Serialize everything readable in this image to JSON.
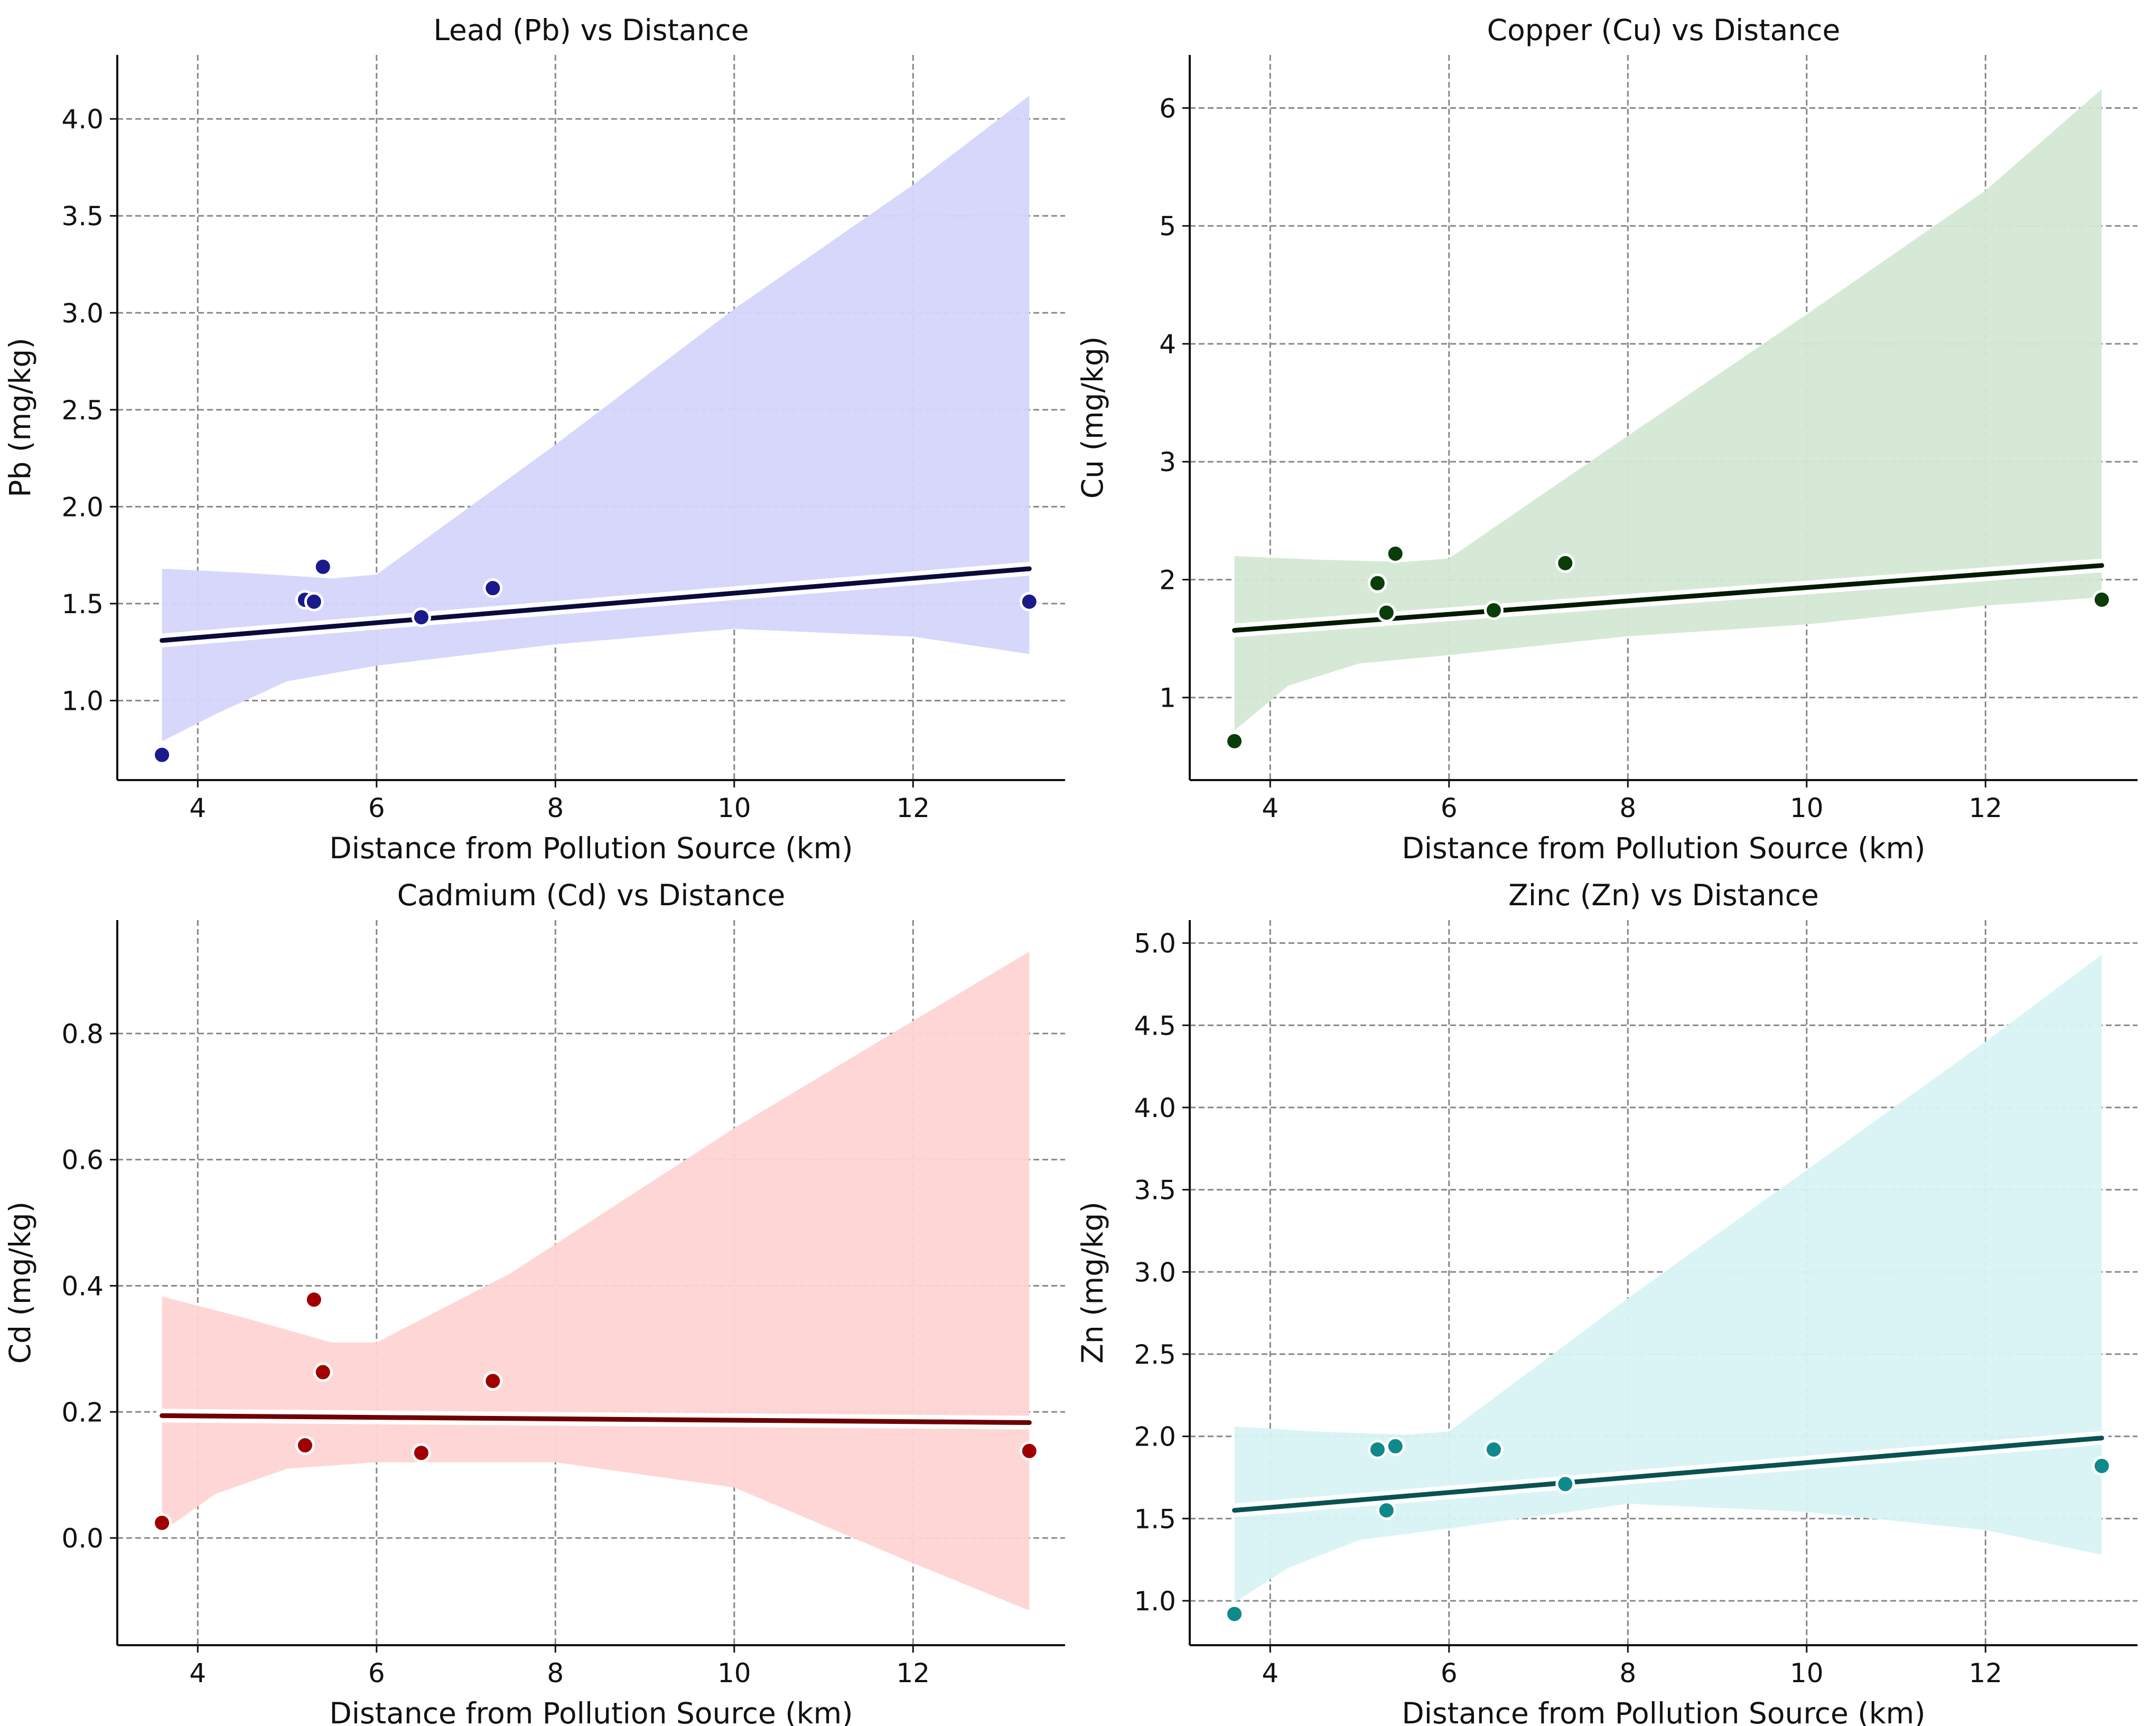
{
  "chart_data": [
    {
      "type": "scatter",
      "title": "Lead (Pb) vs Distance",
      "xlabel": "Distance from Pollution Source (km)",
      "ylabel": "Pb (mg/kg)",
      "xlim": [
        3.1,
        13.7
      ],
      "ylim": [
        0.59,
        4.33
      ],
      "xticks": [
        4,
        6,
        8,
        10,
        12
      ],
      "xtick_labels": [
        "4",
        "6",
        "8",
        "10",
        "12"
      ],
      "yticks": [
        1.0,
        1.5,
        2.0,
        2.5,
        3.0,
        3.5,
        4.0
      ],
      "ytick_labels": [
        "1.0",
        "1.5",
        "2.0",
        "2.5",
        "3.0",
        "3.5",
        "4.0"
      ],
      "grid": true,
      "x": [
        3.6,
        5.2,
        5.3,
        5.4,
        6.5,
        7.3,
        13.3
      ],
      "y": [
        0.72,
        1.52,
        1.51,
        1.69,
        1.43,
        1.58,
        1.51
      ],
      "fit": {
        "x": [
          3.6,
          13.3
        ],
        "y": [
          1.31,
          1.68
        ]
      },
      "ci_upper": {
        "x": [
          3.6,
          4.5,
          5.5,
          6.0,
          8.0,
          10.0,
          12.0,
          13.3
        ],
        "y": [
          1.68,
          1.66,
          1.63,
          1.65,
          2.32,
          3.02,
          3.66,
          4.12
        ]
      },
      "ci_lower": {
        "x": [
          13.3,
          12.0,
          10.0,
          8.0,
          6.0,
          5.0,
          4.2,
          3.6
        ],
        "y": [
          1.24,
          1.33,
          1.37,
          1.29,
          1.18,
          1.1,
          0.93,
          0.79
        ]
      },
      "colors": {
        "points": "#1a1a8c",
        "line": "#0a0a3c",
        "band": "#d5d5fc"
      }
    },
    {
      "type": "scatter",
      "title": "Copper (Cu) vs Distance",
      "xlabel": "Distance from Pollution Source (km)",
      "ylabel": "Cu (mg/kg)",
      "xlim": [
        3.1,
        13.7
      ],
      "ylim": [
        0.3,
        6.45
      ],
      "xticks": [
        4,
        6,
        8,
        10,
        12
      ],
      "xtick_labels": [
        "4",
        "6",
        "8",
        "10",
        "12"
      ],
      "yticks": [
        1,
        2,
        3,
        4,
        5,
        6
      ],
      "ytick_labels": [
        "1",
        "2",
        "3",
        "4",
        "5",
        "6"
      ],
      "grid": true,
      "x": [
        3.6,
        5.2,
        5.3,
        5.4,
        6.5,
        7.3,
        13.3
      ],
      "y": [
        0.63,
        1.97,
        1.72,
        2.22,
        1.74,
        2.14,
        1.83
      ],
      "fit": {
        "x": [
          3.6,
          13.3
        ],
        "y": [
          1.57,
          2.12
        ]
      },
      "ci_upper": {
        "x": [
          3.6,
          4.5,
          5.5,
          6.0,
          8.0,
          10.0,
          12.0,
          13.3
        ],
        "y": [
          2.2,
          2.17,
          2.15,
          2.18,
          3.22,
          4.25,
          5.3,
          6.16
        ]
      },
      "ci_lower": {
        "x": [
          13.3,
          12.0,
          10.0,
          8.0,
          6.0,
          5.0,
          4.2,
          3.6
        ],
        "y": [
          1.85,
          1.78,
          1.62,
          1.52,
          1.36,
          1.29,
          1.1,
          0.72
        ]
      },
      "colors": {
        "points": "#0b3d0b",
        "line": "#051a05",
        "band": "#d4e8d4"
      }
    },
    {
      "type": "scatter",
      "title": "Cadmium (Cd) vs Distance",
      "xlabel": "Distance from Pollution Source (km)",
      "ylabel": "Cd (mg/kg)",
      "xlim": [
        3.1,
        13.7
      ],
      "ylim": [
        -0.17,
        0.98
      ],
      "xticks": [
        4,
        6,
        8,
        10,
        12
      ],
      "xtick_labels": [
        "4",
        "6",
        "8",
        "10",
        "12"
      ],
      "yticks": [
        0.0,
        0.2,
        0.4,
        0.6,
        0.8
      ],
      "ytick_labels": [
        "0.0",
        "0.2",
        "0.4",
        "0.6",
        "0.8"
      ],
      "grid": true,
      "x": [
        3.6,
        5.2,
        5.3,
        5.4,
        6.5,
        7.3,
        13.3
      ],
      "y": [
        0.024,
        0.147,
        0.378,
        0.263,
        0.135,
        0.249,
        0.138
      ],
      "fit": {
        "x": [
          3.6,
          13.3
        ],
        "y": [
          0.194,
          0.183
        ]
      },
      "ci_upper": {
        "x": [
          3.6,
          4.5,
          5.5,
          6.0,
          7.5,
          10.0,
          12.0,
          13.3
        ],
        "y": [
          0.383,
          0.35,
          0.31,
          0.31,
          0.42,
          0.65,
          0.82,
          0.93
        ]
      },
      "ci_lower": {
        "x": [
          13.3,
          12.0,
          10.0,
          8.0,
          6.0,
          5.0,
          4.2,
          3.6
        ],
        "y": [
          -0.115,
          -0.04,
          0.08,
          0.12,
          0.12,
          0.11,
          0.07,
          0.01
        ]
      },
      "colors": {
        "points": "#a00000",
        "line": "#6e0000",
        "band": "#ffd4d4"
      }
    },
    {
      "type": "scatter",
      "title": "Zinc (Zn) vs Distance",
      "xlabel": "Distance from Pollution Source (km)",
      "ylabel": "Zn (mg/kg)",
      "xlim": [
        3.1,
        13.7
      ],
      "ylim": [
        0.73,
        5.14
      ],
      "xticks": [
        4,
        6,
        8,
        10,
        12
      ],
      "xtick_labels": [
        "4",
        "6",
        "8",
        "10",
        "12"
      ],
      "yticks": [
        1.0,
        1.5,
        2.0,
        2.5,
        3.0,
        3.5,
        4.0,
        4.5,
        5.0
      ],
      "ytick_labels": [
        "1.0",
        "1.5",
        "2.0",
        "2.5",
        "3.0",
        "3.5",
        "4.0",
        "4.5",
        "5.0"
      ],
      "grid": true,
      "x": [
        3.6,
        5.2,
        5.3,
        5.4,
        6.5,
        7.3,
        13.3
      ],
      "y": [
        0.92,
        1.92,
        1.55,
        1.94,
        1.92,
        1.71,
        1.82
      ],
      "fit": {
        "x": [
          3.6,
          13.3
        ],
        "y": [
          1.55,
          1.99
        ]
      },
      "ci_upper": {
        "x": [
          3.6,
          4.5,
          5.5,
          6.0,
          8.0,
          10.0,
          12.0,
          13.3
        ],
        "y": [
          2.06,
          2.03,
          2.01,
          2.03,
          2.84,
          3.62,
          4.4,
          4.93
        ]
      },
      "ci_lower": {
        "x": [
          13.3,
          12.0,
          10.0,
          8.0,
          6.0,
          5.0,
          4.2,
          3.6
        ],
        "y": [
          1.28,
          1.43,
          1.54,
          1.59,
          1.44,
          1.37,
          1.2,
          0.99
        ]
      },
      "colors": {
        "points": "#0e8a8a",
        "line": "#0a5252",
        "band": "#d8f3f4"
      }
    }
  ]
}
